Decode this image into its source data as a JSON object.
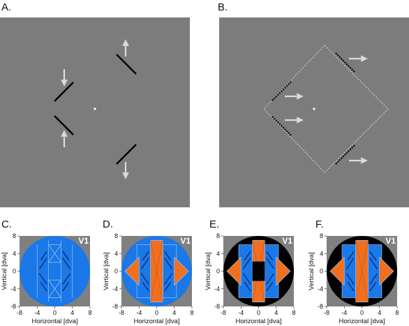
{
  "panels": {
    "a": {
      "label": "A."
    },
    "b": {
      "label": "B."
    },
    "c": {
      "label": "C.",
      "area": "V1",
      "background": "blue"
    },
    "d": {
      "label": "D.",
      "area": "V1",
      "background": "blue"
    },
    "e": {
      "label": "E.",
      "area": "V1",
      "background": "black"
    },
    "f": {
      "label": "F.",
      "area": "V1",
      "background": "black"
    }
  },
  "axes": {
    "xlabel": "Horizontal  [dva]",
    "ylabel": "Vertical  [dva]",
    "xticks": [
      "-8",
      "-4",
      "0",
      "4",
      "8"
    ],
    "yticks": [
      "8",
      "4",
      "0",
      "-4",
      "-8"
    ]
  },
  "colors": {
    "stimulus_bg": "#7c7c7c",
    "map_bg": "#808080",
    "v1_blue": "#1a78e8",
    "orange": "#f07020",
    "black": "#000000"
  }
}
